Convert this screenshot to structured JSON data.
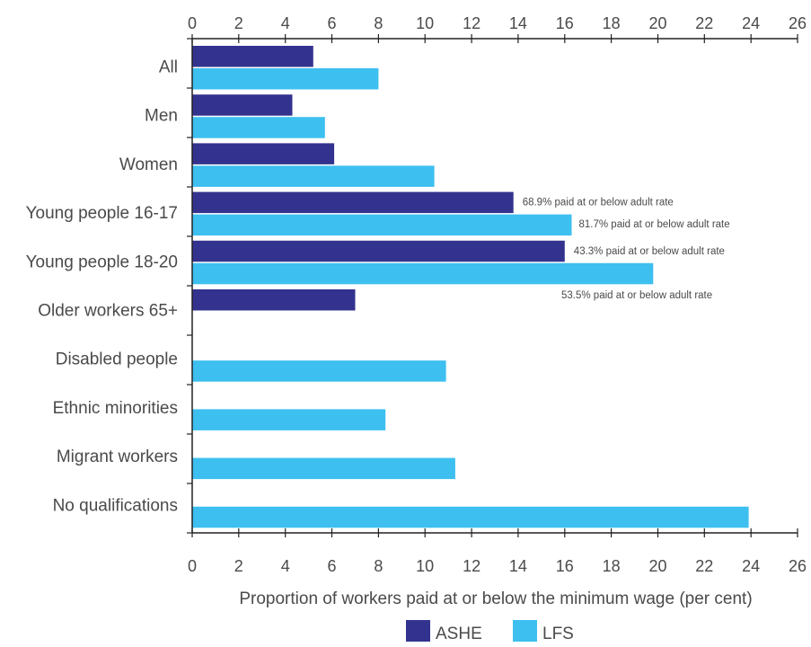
{
  "colors": {
    "ashe": "#33338f",
    "lfs": "#3dbff0",
    "axis": "#222222",
    "text": "#4a4a4a"
  },
  "chart_data": {
    "type": "bar",
    "orientation": "horizontal",
    "title": "",
    "xlabel": "Proportion of workers paid at or below the minimum wage (per cent)",
    "ylabel": "",
    "xlim": [
      0,
      26
    ],
    "xticks": [
      "0",
      "2",
      "4",
      "6",
      "8",
      "10",
      "12",
      "14",
      "16",
      "18",
      "20",
      "22",
      "24",
      "26"
    ],
    "grid": false,
    "legend_position": "bottom",
    "categories": [
      "All",
      "Men",
      "Women",
      "Young people 16-17",
      "Young people 18-20",
      "Older workers 65+",
      "Disabled people",
      "Ethnic minorities",
      "Migrant workers",
      "No qualifications"
    ],
    "series": [
      {
        "name": "ASHE",
        "color": "#33338f",
        "values": [
          5.2,
          4.3,
          6.1,
          13.8,
          16.0,
          7.0,
          null,
          null,
          null,
          null
        ]
      },
      {
        "name": "LFS",
        "color": "#3dbff0",
        "values": [
          8.0,
          5.7,
          10.4,
          16.3,
          19.8,
          null,
          10.9,
          8.3,
          11.3,
          23.9
        ]
      }
    ],
    "annotations": [
      {
        "category": "Young people 16-17",
        "series": "ASHE",
        "text": "68.9% paid at or below adult rate"
      },
      {
        "category": "Young people 16-17",
        "series": "LFS",
        "text": "81.7% paid at or below adult rate"
      },
      {
        "category": "Young people 18-20",
        "series": "ASHE",
        "text": "43.3% paid at or below adult rate"
      },
      {
        "category": "Young people 18-20",
        "series": "LFS",
        "text": "53.5% paid at or below adult rate"
      }
    ]
  }
}
